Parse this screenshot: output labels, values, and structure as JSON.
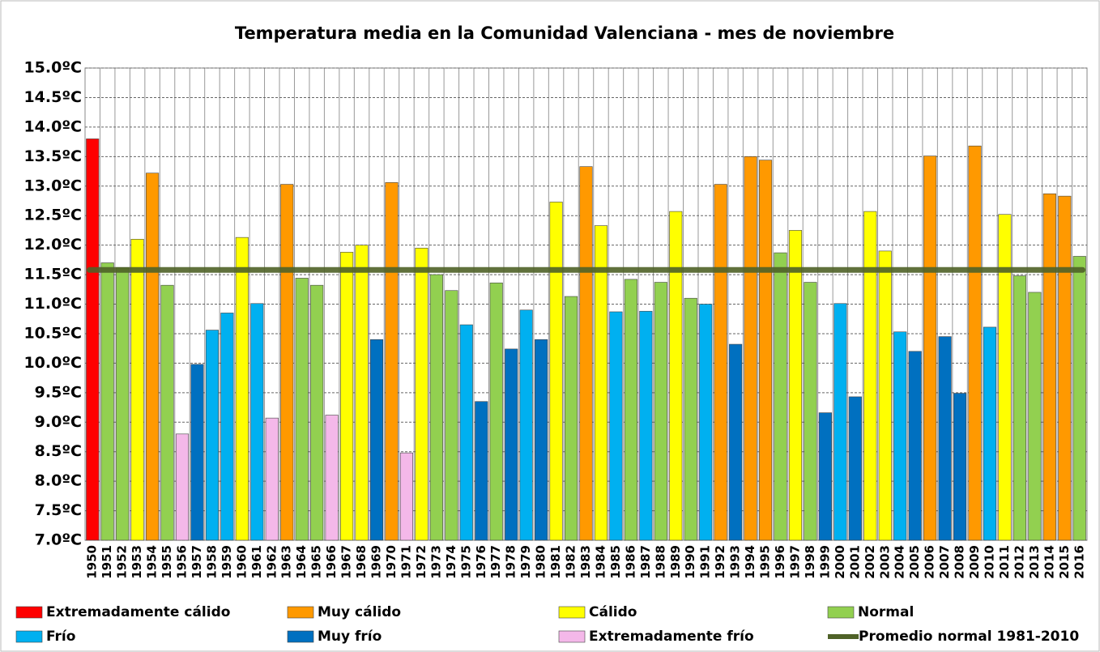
{
  "chart_data": {
    "type": "bar",
    "title": "Temperatura media en la Comunidad Valenciana - mes de noviembre",
    "categories": [
      "1950",
      "1951",
      "1952",
      "1953",
      "1954",
      "1955",
      "1956",
      "1957",
      "1958",
      "1959",
      "1960",
      "1961",
      "1962",
      "1963",
      "1964",
      "1965",
      "1966",
      "1967",
      "1968",
      "1969",
      "1970",
      "1971",
      "1972",
      "1973",
      "1974",
      "1975",
      "1976",
      "1977",
      "1978",
      "1979",
      "1980",
      "1981",
      "1982",
      "1983",
      "1984",
      "1985",
      "1986",
      "1987",
      "1988",
      "1989",
      "1990",
      "1991",
      "1992",
      "1993",
      "1994",
      "1995",
      "1996",
      "1997",
      "1998",
      "1999",
      "2000",
      "2001",
      "2002",
      "2003",
      "2004",
      "2005",
      "2006",
      "2007",
      "2008",
      "2009",
      "2010",
      "2011",
      "2012",
      "2013",
      "2014",
      "2015",
      "2016"
    ],
    "values": [
      13.8,
      11.7,
      11.62,
      12.1,
      13.22,
      11.32,
      8.8,
      9.98,
      10.56,
      10.85,
      12.13,
      11.01,
      9.07,
      13.03,
      11.44,
      11.32,
      9.12,
      11.88,
      12.0,
      10.4,
      13.06,
      8.48,
      11.95,
      11.5,
      11.23,
      10.65,
      9.35,
      11.36,
      10.24,
      10.9,
      10.4,
      12.73,
      11.13,
      13.33,
      12.33,
      10.87,
      11.42,
      10.88,
      11.37,
      12.57,
      11.1,
      11.0,
      13.03,
      10.32,
      13.5,
      13.44,
      11.87,
      12.25,
      11.37,
      9.16,
      11.01,
      9.43,
      12.57,
      11.9,
      10.53,
      10.2,
      13.51,
      10.45,
      9.49,
      13.68,
      10.61,
      12.52,
      11.48,
      11.2,
      12.87,
      12.83,
      11.81
    ],
    "colors": [
      "#ff0000",
      "#92d050",
      "#92d050",
      "#ffff00",
      "#ff9900",
      "#92d050",
      "#f4b8e9",
      "#0070c0",
      "#00b0f0",
      "#00b0f0",
      "#ffff00",
      "#00b0f0",
      "#f4b8e9",
      "#ff9900",
      "#92d050",
      "#92d050",
      "#f4b8e9",
      "#ffff00",
      "#ffff00",
      "#0070c0",
      "#ff9900",
      "#f4b8e9",
      "#ffff00",
      "#92d050",
      "#92d050",
      "#00b0f0",
      "#0070c0",
      "#92d050",
      "#0070c0",
      "#00b0f0",
      "#0070c0",
      "#ffff00",
      "#92d050",
      "#ff9900",
      "#ffff00",
      "#00b0f0",
      "#92d050",
      "#00b0f0",
      "#92d050",
      "#ffff00",
      "#92d050",
      "#00b0f0",
      "#ff9900",
      "#0070c0",
      "#ff9900",
      "#ff9900",
      "#92d050",
      "#ffff00",
      "#92d050",
      "#0070c0",
      "#00b0f0",
      "#0070c0",
      "#ffff00",
      "#ffff00",
      "#00b0f0",
      "#0070c0",
      "#ff9900",
      "#0070c0",
      "#0070c0",
      "#ff9900",
      "#00b0f0",
      "#ffff00",
      "#92d050",
      "#92d050",
      "#ff9900",
      "#ff9900",
      "#92d050"
    ],
    "legend": [
      {
        "name": "Extremadamente cálido",
        "color": "#ff0000"
      },
      {
        "name": "Muy cálido",
        "color": "#ff9900"
      },
      {
        "name": "Cálido",
        "color": "#ffff00"
      },
      {
        "name": "Normal",
        "color": "#92d050"
      },
      {
        "name": "Frío",
        "color": "#00b0f0"
      },
      {
        "name": "Muy frío",
        "color": "#0070c0"
      },
      {
        "name": "Extremadamente frío",
        "color": "#f4b8e9"
      }
    ],
    "reference_line": {
      "name": "Promedio normal 1981-2010",
      "value": 11.58,
      "color": "#4f6228"
    },
    "ylim": [
      7,
      15
    ],
    "yticks": [
      {
        "value": 7,
        "label": "7.0ºC"
      },
      {
        "value": 7.5,
        "label": "7.5ºC"
      },
      {
        "value": 8,
        "label": "8.0ºC"
      },
      {
        "value": 8.5,
        "label": "8.5ºC"
      },
      {
        "value": 9,
        "label": "9.0ºC"
      },
      {
        "value": 9.5,
        "label": "9.5ºC"
      },
      {
        "value": 10,
        "label": "10.0ºC"
      },
      {
        "value": 10.5,
        "label": "10.5ºC"
      },
      {
        "value": 11,
        "label": "11.0ºC"
      },
      {
        "value": 11.5,
        "label": "11.5ºC"
      },
      {
        "value": 12,
        "label": "12.0ºC"
      },
      {
        "value": 12.5,
        "label": "12.5ºC"
      },
      {
        "value": 13,
        "label": "13.0ºC"
      },
      {
        "value": 13.5,
        "label": "13.5ºC"
      },
      {
        "value": 14,
        "label": "14.0ºC"
      },
      {
        "value": 14.5,
        "label": "14.5ºC"
      },
      {
        "value": 15,
        "label": "15.0ºC"
      }
    ],
    "grid": true
  }
}
